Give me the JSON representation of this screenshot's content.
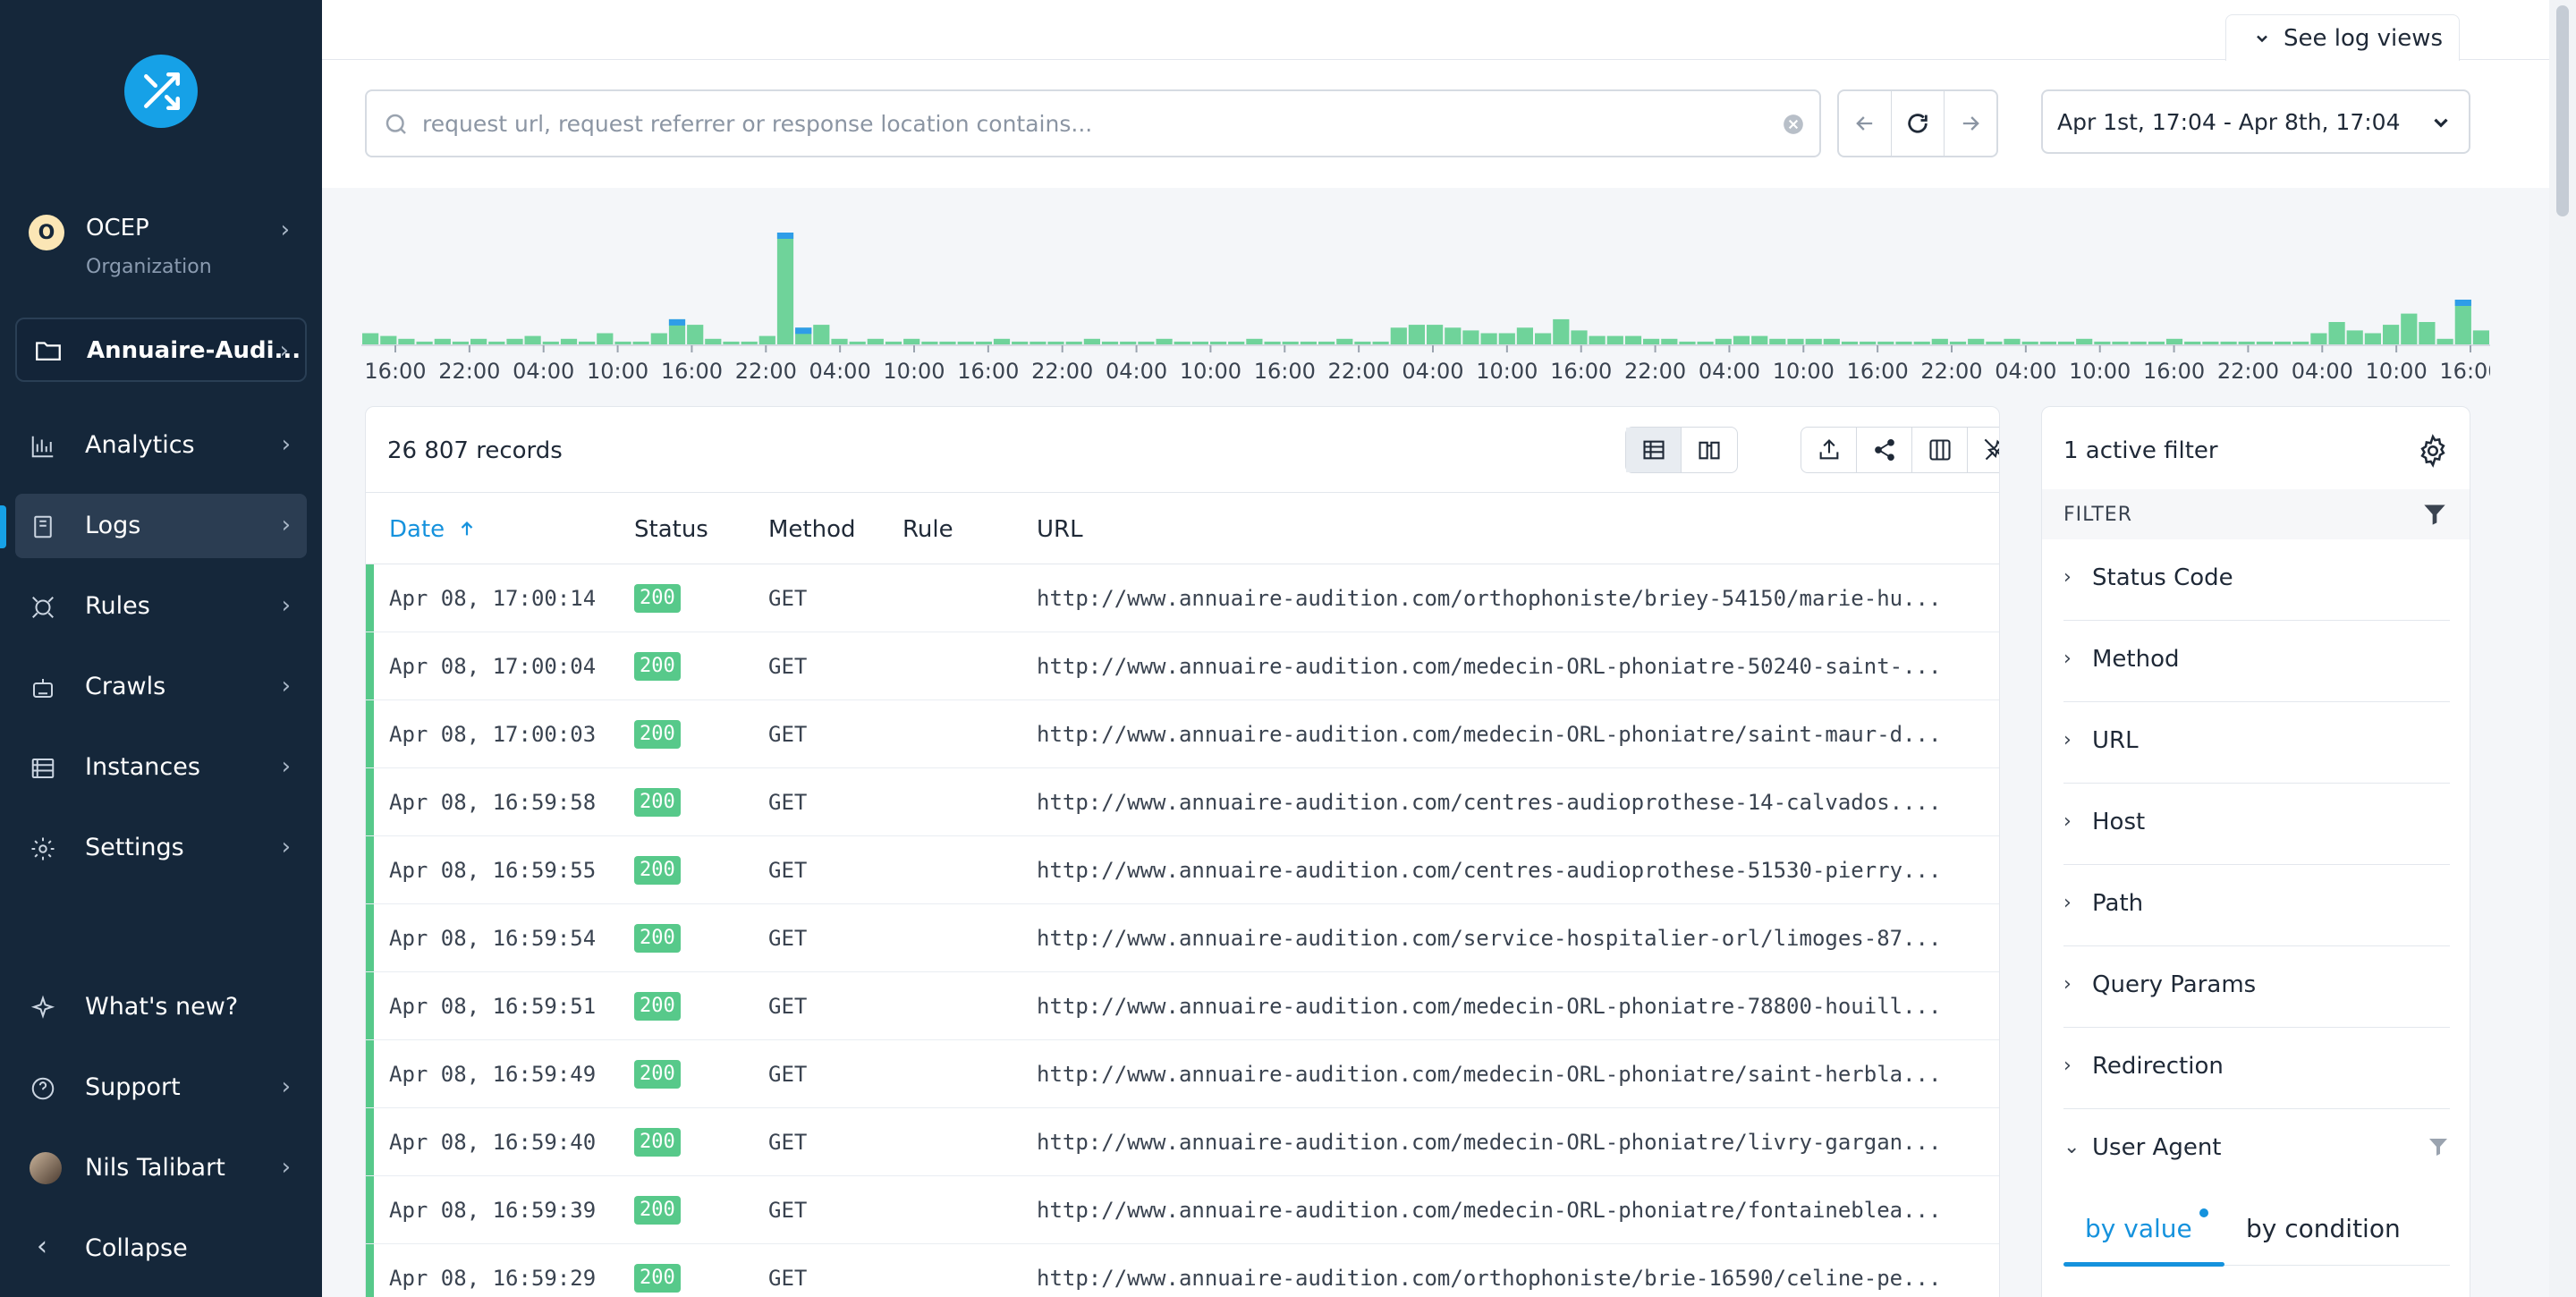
{
  "sidebar": {
    "org": {
      "initial": "O",
      "name": "OCEP",
      "type": "Organization"
    },
    "project": "Annuaire-Audi...",
    "nav": [
      {
        "label": "Analytics",
        "icon": "bar-chart-icon"
      },
      {
        "label": "Logs",
        "icon": "document-icon",
        "active": true
      },
      {
        "label": "Rules",
        "icon": "rules-icon"
      },
      {
        "label": "Crawls",
        "icon": "robot-icon"
      },
      {
        "label": "Instances",
        "icon": "server-icon"
      },
      {
        "label": "Settings",
        "icon": "gear-icon"
      }
    ],
    "bottom": [
      {
        "label": "What's new?",
        "icon": "sparkle-icon"
      },
      {
        "label": "Support",
        "icon": "help-icon"
      },
      {
        "label": "Nils Talibart",
        "icon": "avatar"
      },
      {
        "label": "Collapse",
        "icon": "chevron-left-icon"
      }
    ]
  },
  "header": {
    "see_log_views": "See log views",
    "search_placeholder": "request url, request referrer or response location contains...",
    "date_range": "Apr 1st, 17:04 - Apr 8th, 17:04"
  },
  "histogram": {
    "tick_labels": [
      "16:00",
      "22:00",
      "04:00",
      "10:00",
      "16:00",
      "22:00",
      "04:00",
      "10:00",
      "16:00",
      "22:00",
      "04:00",
      "10:00",
      "16:00",
      "22:00",
      "04:00",
      "10:00",
      "16:00",
      "22:00",
      "04:00",
      "10:00",
      "16:00",
      "22:00",
      "04:00",
      "10:00",
      "16:00",
      "22:00",
      "04:00",
      "10:00",
      "16:00"
    ],
    "bars": [
      4,
      3,
      2,
      1,
      2,
      1,
      2,
      1,
      2,
      3,
      1,
      2,
      1,
      4,
      1,
      1,
      4,
      9,
      7,
      2,
      1,
      1,
      3,
      40,
      6,
      7,
      2,
      1,
      2,
      1,
      2,
      1,
      1,
      1,
      1,
      2,
      1,
      1,
      1,
      1,
      2,
      1,
      1,
      1,
      2,
      1,
      1,
      1,
      1,
      2,
      1,
      1,
      1,
      1,
      2,
      1,
      1,
      6,
      7,
      7,
      6,
      5,
      4,
      4,
      6,
      4,
      9,
      5,
      3,
      3,
      3,
      2,
      2,
      1,
      1,
      2,
      3,
      3,
      2,
      2,
      2,
      2,
      1,
      1,
      1,
      1,
      1,
      2,
      1,
      2,
      1,
      2,
      1,
      1,
      1,
      2,
      1,
      1,
      1,
      1,
      2,
      1,
      1,
      1,
      1,
      1,
      1,
      1,
      4,
      8,
      5,
      4,
      7,
      11,
      8,
      2,
      16,
      5
    ],
    "highlight": [
      17,
      23,
      24,
      116
    ],
    "colors": {
      "ok": "#6fd39a",
      "redirect": "#2f9de8"
    }
  },
  "table": {
    "records_label": "26 807 records",
    "columns": {
      "date": "Date",
      "status": "Status",
      "method": "Method",
      "rule": "Rule",
      "url": "URL"
    },
    "rows": [
      {
        "date": "Apr 08, 17:00:14",
        "status": "200",
        "method": "GET",
        "url": "http://www.annuaire-audition.com/orthophoniste/briey-54150/marie-hu..."
      },
      {
        "date": "Apr 08, 17:00:04",
        "status": "200",
        "method": "GET",
        "url": "http://www.annuaire-audition.com/medecin-ORL-phoniatre-50240-saint-..."
      },
      {
        "date": "Apr 08, 17:00:03",
        "status": "200",
        "method": "GET",
        "url": "http://www.annuaire-audition.com/medecin-ORL-phoniatre/saint-maur-d..."
      },
      {
        "date": "Apr 08, 16:59:58",
        "status": "200",
        "method": "GET",
        "url": "http://www.annuaire-audition.com/centres-audioprothese-14-calvados...."
      },
      {
        "date": "Apr 08, 16:59:55",
        "status": "200",
        "method": "GET",
        "url": "http://www.annuaire-audition.com/centres-audioprothese-51530-pierry..."
      },
      {
        "date": "Apr 08, 16:59:54",
        "status": "200",
        "method": "GET",
        "url": "http://www.annuaire-audition.com/service-hospitalier-orl/limoges-87..."
      },
      {
        "date": "Apr 08, 16:59:51",
        "status": "200",
        "method": "GET",
        "url": "http://www.annuaire-audition.com/medecin-ORL-phoniatre-78800-houill..."
      },
      {
        "date": "Apr 08, 16:59:49",
        "status": "200",
        "method": "GET",
        "url": "http://www.annuaire-audition.com/medecin-ORL-phoniatre/saint-herbla..."
      },
      {
        "date": "Apr 08, 16:59:40",
        "status": "200",
        "method": "GET",
        "url": "http://www.annuaire-audition.com/medecin-ORL-phoniatre/livry-gargan..."
      },
      {
        "date": "Apr 08, 16:59:39",
        "status": "200",
        "method": "GET",
        "url": "http://www.annuaire-audition.com/medecin-ORL-phoniatre/fontaineblea..."
      },
      {
        "date": "Apr 08, 16:59:29",
        "status": "200",
        "method": "GET",
        "url": "http://www.annuaire-audition.com/orthophoniste/brie-16590/celine-pe..."
      }
    ]
  },
  "filters": {
    "title": "1 active filter",
    "section_label": "FILTER",
    "sections": [
      "Status Code",
      "Method",
      "URL",
      "Host",
      "Path",
      "Query Params",
      "Redirection",
      "User Agent"
    ],
    "tabs": {
      "by_value": "by value",
      "by_condition": "by condition"
    }
  }
}
